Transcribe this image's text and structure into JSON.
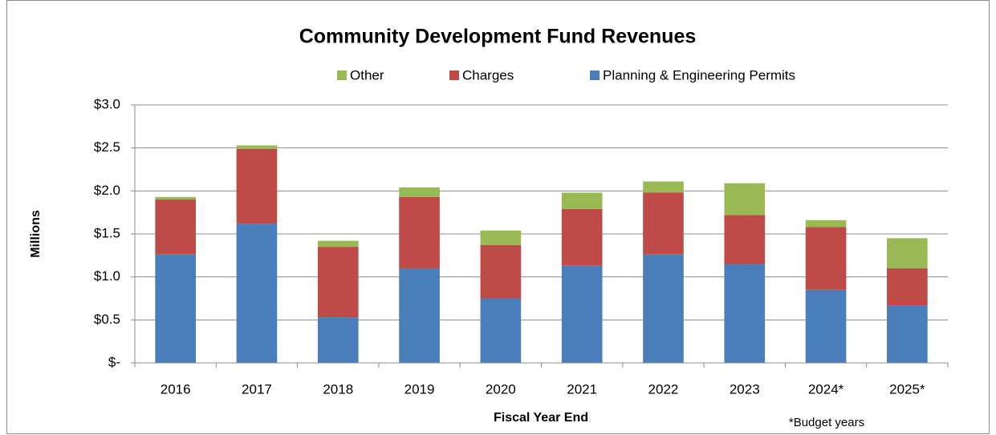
{
  "chart_data": {
    "type": "bar",
    "stacked": true,
    "title": "Community Development Fund Revenues",
    "ylabel": "Millions",
    "xlabel": "Fiscal Year End",
    "annotation": "*Budget years",
    "categories": [
      "2016",
      "2017",
      "2018",
      "2019",
      "2020",
      "2021",
      "2022",
      "2023",
      "2024*",
      "2025*"
    ],
    "series": [
      {
        "name": "Planning & Engineering Permits",
        "color": "#4a7ebb",
        "values": [
          1.26,
          1.62,
          0.53,
          1.1,
          0.75,
          1.13,
          1.26,
          1.15,
          0.85,
          0.67
        ]
      },
      {
        "name": "Charges",
        "color": "#be4b48",
        "values": [
          0.64,
          0.87,
          0.82,
          0.83,
          0.62,
          0.66,
          0.72,
          0.57,
          0.73,
          0.43
        ]
      },
      {
        "name": "Other",
        "color": "#98b954",
        "values": [
          0.03,
          0.04,
          0.07,
          0.11,
          0.17,
          0.19,
          0.13,
          0.37,
          0.08,
          0.35
        ]
      }
    ],
    "ylim": [
      0,
      3
    ],
    "yticks": [
      {
        "value": 0,
        "label": "$-"
      },
      {
        "value": 0.5,
        "label": "$0.5"
      },
      {
        "value": 1,
        "label": "$1.0"
      },
      {
        "value": 1.5,
        "label": "$1.5"
      },
      {
        "value": 2,
        "label": "$2.0"
      },
      {
        "value": 2.5,
        "label": "$2.5"
      },
      {
        "value": 3,
        "label": "$3.0"
      }
    ],
    "grid": true
  }
}
